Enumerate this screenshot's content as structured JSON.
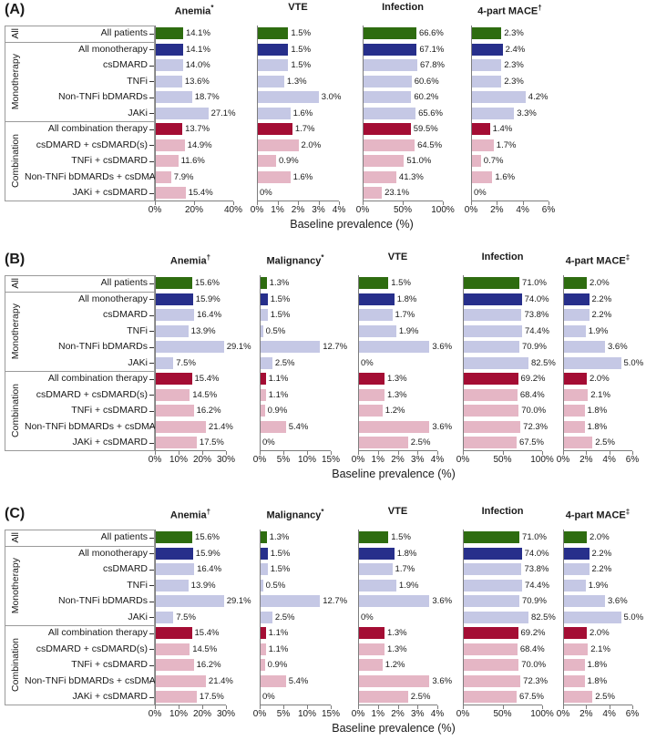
{
  "figure": {
    "colors": {
      "all_patients": "#2e6c10",
      "all_monotherapy": "#272f8b",
      "monotherapy_sub": "#c5c8e5",
      "all_combination": "#a40d34",
      "combination_sub": "#e5b6c5",
      "axis": "#7d7d7d",
      "box_border": "#9a9a9a",
      "text": "#1a1a1a"
    },
    "groups": [
      {
        "label": "All",
        "rows": 1
      },
      {
        "label": "Monotherapy",
        "rows": 5
      },
      {
        "label": "Combination",
        "rows": 5
      }
    ],
    "row_color_keys": [
      "all_patients",
      "all_monotherapy",
      "monotherapy_sub",
      "monotherapy_sub",
      "monotherapy_sub",
      "monotherapy_sub",
      "all_combination",
      "combination_sub",
      "combination_sub",
      "combination_sub",
      "combination_sub"
    ]
  },
  "chart_data": [
    {
      "type": "bar",
      "orientation": "horizontal",
      "panel_label": "(A)",
      "xlabel": "Baseline prevalence (%)",
      "categories": [
        "All patients",
        "All monotherapy",
        "csDMARD",
        "TNFi",
        "Non-TNFi bDMARDs",
        "JAKi",
        "All combination therapy",
        "csDMARD + csDMARD(s)",
        "TNFi + csDMARD",
        "Non-TNFi bDMARDs + csDMARD",
        "JAKi + csDMARD"
      ],
      "series": [
        {
          "name": "Anemia",
          "sup": "*",
          "xlim": [
            0,
            40
          ],
          "ticks": [
            "0%",
            "20%",
            "40%"
          ],
          "values": [
            14.1,
            14.1,
            14.0,
            13.6,
            18.7,
            27.1,
            13.7,
            14.9,
            11.6,
            7.9,
            15.4
          ]
        },
        {
          "name": "VTE",
          "sup": "",
          "xlim": [
            0,
            4
          ],
          "ticks": [
            "0%",
            "1%",
            "2%",
            "3%",
            "4%"
          ],
          "values": [
            1.5,
            1.5,
            1.5,
            1.3,
            3.0,
            1.6,
            1.7,
            2.0,
            0.9,
            1.6,
            0
          ]
        },
        {
          "name": "Infection",
          "sup": "",
          "xlim": [
            0,
            100
          ],
          "ticks": [
            "0%",
            "50%",
            "100%"
          ],
          "values": [
            66.6,
            67.1,
            67.8,
            60.6,
            60.2,
            65.6,
            59.5,
            64.5,
            51.0,
            41.3,
            23.1
          ]
        },
        {
          "name": "4-part MACE",
          "sup": "†",
          "xlim": [
            0,
            6
          ],
          "ticks": [
            "0%",
            "2%",
            "4%",
            "6%"
          ],
          "values": [
            2.3,
            2.4,
            2.3,
            2.3,
            4.2,
            3.3,
            1.4,
            1.7,
            0.7,
            1.6,
            0
          ]
        }
      ]
    },
    {
      "type": "bar",
      "orientation": "horizontal",
      "panel_label": "(B)",
      "xlabel": "Baseline prevalence (%)",
      "categories": [
        "All patients",
        "All monotherapy",
        "csDMARD",
        "TNFi",
        "Non-TNFi bDMARDs",
        "JAKi",
        "All combination therapy",
        "csDMARD + csDMARD(s)",
        "TNFi + csDMARD",
        "Non-TNFi bDMARDs + csDMARD",
        "JAKi + csDMARD"
      ],
      "series": [
        {
          "name": "Anemia",
          "sup": "†",
          "xlim": [
            0,
            30
          ],
          "ticks": [
            "0%",
            "10%",
            "20%",
            "30%"
          ],
          "values": [
            15.6,
            15.9,
            16.4,
            13.9,
            29.1,
            7.5,
            15.4,
            14.5,
            16.2,
            21.4,
            17.5
          ]
        },
        {
          "name": "Malignancy",
          "sup": "*",
          "xlim": [
            0,
            15
          ],
          "ticks": [
            "0%",
            "5%",
            "10%",
            "15%"
          ],
          "values": [
            1.3,
            1.5,
            1.5,
            0.5,
            12.7,
            2.5,
            1.1,
            1.1,
            0.9,
            5.4,
            0
          ]
        },
        {
          "name": "VTE",
          "sup": "",
          "xlim": [
            0,
            4
          ],
          "ticks": [
            "0%",
            "1%",
            "2%",
            "3%",
            "4%"
          ],
          "values": [
            1.5,
            1.8,
            1.7,
            1.9,
            3.6,
            0,
            1.3,
            1.3,
            1.2,
            3.6,
            2.5
          ]
        },
        {
          "name": "Infection",
          "sup": "",
          "xlim": [
            0,
            100
          ],
          "ticks": [
            "0%",
            "50%",
            "100%"
          ],
          "values": [
            71.0,
            74.0,
            73.8,
            74.4,
            70.9,
            82.5,
            69.2,
            68.4,
            70.0,
            72.3,
            67.5
          ]
        },
        {
          "name": "4-part MACE",
          "sup": "‡",
          "xlim": [
            0,
            6
          ],
          "ticks": [
            "0%",
            "2%",
            "4%",
            "6%"
          ],
          "values": [
            2.0,
            2.2,
            2.2,
            1.9,
            3.6,
            5.0,
            2.0,
            2.1,
            1.8,
            1.8,
            2.5
          ]
        }
      ]
    },
    {
      "type": "bar",
      "orientation": "horizontal",
      "panel_label": "(C)",
      "xlabel": "Baseline prevalence (%)",
      "categories": [
        "All patients",
        "All monotherapy",
        "csDMARD",
        "TNFi",
        "Non-TNFi bDMARDs",
        "JAKi",
        "All combination therapy",
        "csDMARD + csDMARD(s)",
        "TNFi + csDMARD",
        "Non-TNFi bDMARDs + csDMARD",
        "JAKi + csDMARD"
      ],
      "series": [
        {
          "name": "Anemia",
          "sup": "†",
          "xlim": [
            0,
            30
          ],
          "ticks": [
            "0%",
            "10%",
            "20%",
            "30%"
          ],
          "values": [
            15.6,
            15.9,
            16.4,
            13.9,
            29.1,
            7.5,
            15.4,
            14.5,
            16.2,
            21.4,
            17.5
          ]
        },
        {
          "name": "Malignancy",
          "sup": "*",
          "xlim": [
            0,
            15
          ],
          "ticks": [
            "0%",
            "5%",
            "10%",
            "15%"
          ],
          "values": [
            1.3,
            1.5,
            1.5,
            0.5,
            12.7,
            2.5,
            1.1,
            1.1,
            0.9,
            5.4,
            0
          ]
        },
        {
          "name": "VTE",
          "sup": "",
          "xlim": [
            0,
            4
          ],
          "ticks": [
            "0%",
            "1%",
            "2%",
            "3%",
            "4%"
          ],
          "values": [
            1.5,
            1.8,
            1.7,
            1.9,
            3.6,
            0,
            1.3,
            1.3,
            1.2,
            3.6,
            2.5
          ]
        },
        {
          "name": "Infection",
          "sup": "",
          "xlim": [
            0,
            100
          ],
          "ticks": [
            "0%",
            "50%",
            "100%"
          ],
          "values": [
            71.0,
            74.0,
            73.8,
            74.4,
            70.9,
            82.5,
            69.2,
            68.4,
            70.0,
            72.3,
            67.5
          ]
        },
        {
          "name": "4-part MACE",
          "sup": "‡",
          "xlim": [
            0,
            6
          ],
          "ticks": [
            "0%",
            "2%",
            "4%",
            "6%"
          ],
          "values": [
            2.0,
            2.2,
            2.2,
            1.9,
            3.6,
            5.0,
            2.0,
            2.1,
            1.8,
            1.8,
            2.5
          ]
        }
      ]
    }
  ]
}
